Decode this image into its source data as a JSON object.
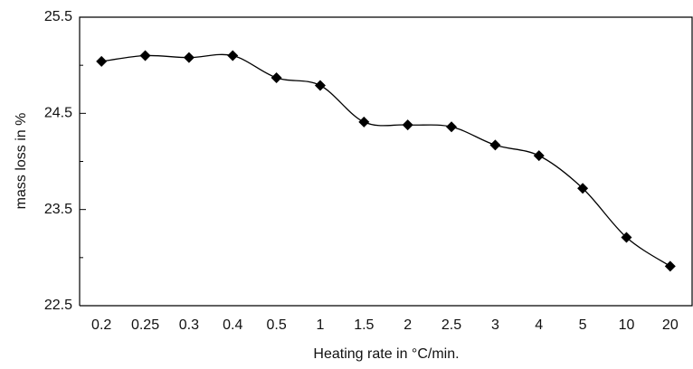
{
  "chart_data": {
    "type": "line",
    "x_label": "Heating rate in °C/min.",
    "y_label": "mass loss in %",
    "categories": [
      "0.2",
      "0.25",
      "0.3",
      "0.4",
      "0.5",
      "1",
      "1.5",
      "2",
      "2.5",
      "3",
      "4",
      "5",
      "10",
      "20"
    ],
    "series": [
      {
        "color": "#000000",
        "values": [
          25.04,
          25.1,
          25.08,
          25.1,
          24.87,
          24.79,
          24.41,
          24.38,
          24.36,
          24.17,
          24.06,
          23.72,
          23.21,
          22.91
        ]
      }
    ],
    "ylim": [
      22.5,
      25.5
    ],
    "yticks": [
      22.5,
      23.5,
      24.5,
      25.5
    ],
    "minor_yticks": [
      23,
      24,
      25
    ],
    "smooth": true,
    "marker": "diamond"
  }
}
